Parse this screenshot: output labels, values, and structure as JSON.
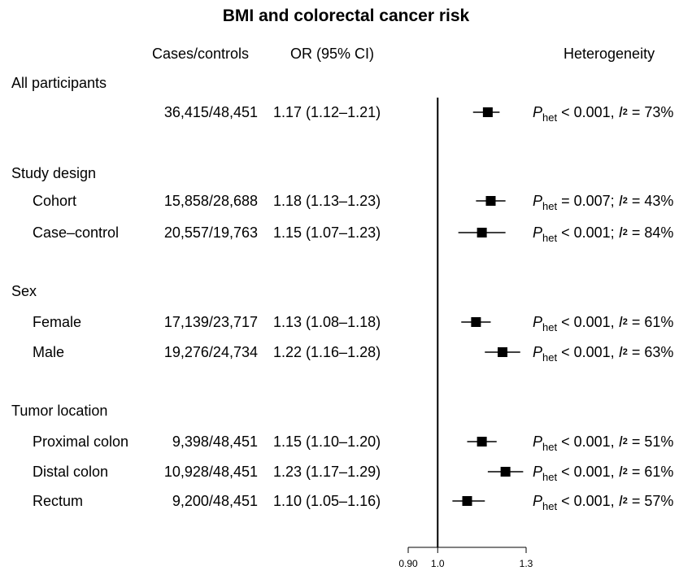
{
  "chart_data": {
    "type": "forest",
    "title": "BMI and colorectal cancer risk",
    "headers": {
      "cases": "Cases/controls",
      "or": "OR (95% CI)",
      "het": "Heterogeneity"
    },
    "xlim": [
      0.9,
      1.3
    ],
    "ref_line": 1.0,
    "ticks": [
      {
        "value": 0.9,
        "label": "0.90"
      },
      {
        "value": 1.0,
        "label": "1.0"
      },
      {
        "value": 1.3,
        "label": "1.3"
      }
    ],
    "groups": [
      {
        "label": "All participants",
        "rows": [
          {
            "label": "",
            "cases": "36,415/48,451",
            "or_text": "1.17 (1.12–1.21)",
            "or": 1.17,
            "lo": 1.12,
            "hi": 1.21,
            "p_op": "< 0.001,",
            "i2": "= 73%"
          }
        ]
      },
      {
        "label": "Study design",
        "rows": [
          {
            "label": "Cohort",
            "cases": "15,858/28,688",
            "or_text": "1.18 (1.13–1.23)",
            "or": 1.18,
            "lo": 1.13,
            "hi": 1.23,
            "p_op": "= 0.007;",
            "i2": "= 43%"
          },
          {
            "label": "Case–control",
            "cases": "20,557/19,763",
            "or_text": "1.15 (1.07–1.23)",
            "or": 1.15,
            "lo": 1.07,
            "hi": 1.23,
            "p_op": "< 0.001;",
            "i2": "= 84%"
          }
        ]
      },
      {
        "label": "Sex",
        "rows": [
          {
            "label": "Female",
            "cases": "17,139/23,717",
            "or_text": "1.13 (1.08–1.18)",
            "or": 1.13,
            "lo": 1.08,
            "hi": 1.18,
            "p_op": "< 0.001,",
            "i2": "= 61%"
          },
          {
            "label": "Male",
            "cases": "19,276/24,734",
            "or_text": "1.22 (1.16–1.28)",
            "or": 1.22,
            "lo": 1.16,
            "hi": 1.28,
            "p_op": "< 0.001,",
            "i2": "= 63%"
          }
        ]
      },
      {
        "label": "Tumor location",
        "rows": [
          {
            "label": "Proximal colon",
            "cases": "9,398/48,451",
            "or_text": "1.15 (1.10–1.20)",
            "or": 1.15,
            "lo": 1.1,
            "hi": 1.2,
            "p_op": "< 0.001,",
            "i2": "= 51%"
          },
          {
            "label": "Distal colon",
            "cases": "10,928/48,451",
            "or_text": "1.23 (1.17–1.29)",
            "or": 1.23,
            "lo": 1.17,
            "hi": 1.29,
            "p_op": "< 0.001,",
            "i2": "= 61%"
          },
          {
            "label": "Rectum",
            "cases": "9,200/48,451",
            "or_text": "1.10 (1.05–1.16)",
            "or": 1.1,
            "lo": 1.05,
            "hi": 1.16,
            "p_op": "< 0.001,",
            "i2": "= 57%"
          }
        ]
      }
    ],
    "het_p_label": "P",
    "het_p_sub": "het",
    "het_i_label": "I",
    "het_i_sup": "2"
  }
}
